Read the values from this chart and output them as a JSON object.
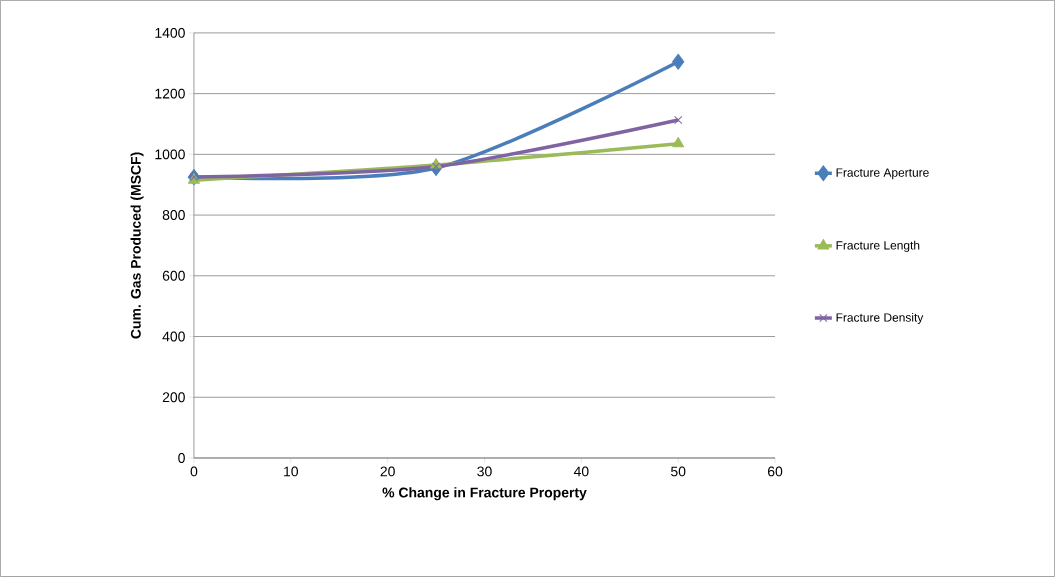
{
  "chart_data": {
    "type": "line",
    "xlabel": "% Change in Fracture Property",
    "ylabel": "Cum. Gas Produced (MSCF)",
    "x": [
      0,
      25,
      50
    ],
    "series": [
      {
        "name": "Fracture Aperture",
        "color": "#4a7ebb",
        "values": [
          925,
          955,
          1305
        ],
        "marker": "diamond"
      },
      {
        "name": "Fracture Length",
        "color": "#9bbb59",
        "values": [
          915,
          965,
          1035
        ],
        "marker": "triangle"
      },
      {
        "name": "Fracture Density",
        "color": "#8064a2",
        "values": [
          925,
          960,
          1113
        ],
        "marker": "cross"
      }
    ],
    "xlim": [
      0,
      60
    ],
    "xticks": [
      0,
      10,
      20,
      30,
      40,
      50,
      60
    ],
    "ylim": [
      0,
      1400
    ],
    "yticks": [
      0,
      200,
      400,
      600,
      800,
      1000,
      1200,
      1400
    ],
    "grid": "y",
    "legend": "right",
    "line_style": "solid"
  }
}
